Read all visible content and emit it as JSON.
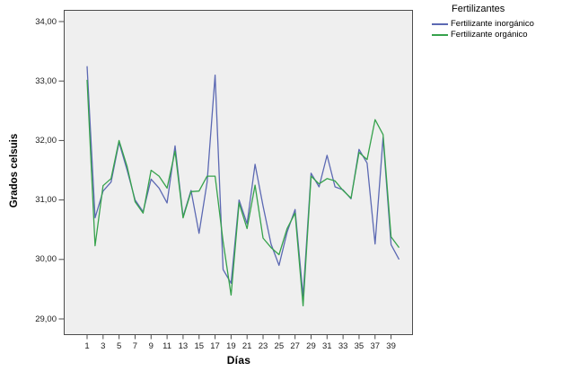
{
  "chart_data": {
    "type": "line",
    "title": "",
    "xlabel": "Días",
    "ylabel": "Grados celsuis",
    "legend_title": "Fertilizantes",
    "plot_bg": "#efefef",
    "frame_color": "#4c4c4c",
    "ylim": [
      29,
      34
    ],
    "yticks": [
      {
        "v": 34,
        "label": "34,00"
      },
      {
        "v": 33,
        "label": "33,00"
      },
      {
        "v": 32,
        "label": "32,00"
      },
      {
        "v": 31,
        "label": "31,00"
      },
      {
        "v": 30,
        "label": "30,00"
      },
      {
        "v": 29,
        "label": "29,00"
      }
    ],
    "xticks": [
      1,
      3,
      5,
      7,
      9,
      11,
      13,
      15,
      17,
      19,
      21,
      23,
      25,
      27,
      29,
      31,
      33,
      35,
      37,
      39
    ],
    "x": [
      1,
      2,
      3,
      4,
      5,
      6,
      7,
      8,
      9,
      10,
      11,
      12,
      13,
      14,
      15,
      16,
      17,
      18,
      19,
      20,
      21,
      22,
      23,
      24,
      25,
      26,
      27,
      28,
      29,
      30,
      31,
      32,
      33,
      34,
      35,
      36,
      37,
      38,
      39,
      40
    ],
    "series": [
      {
        "name": "Fertilizante inorgánico",
        "color": "#5c69b3",
        "values": [
          33.25,
          30.7,
          31.15,
          31.3,
          31.97,
          31.5,
          31.0,
          30.8,
          31.35,
          31.2,
          30.95,
          31.91,
          30.72,
          31.16,
          30.44,
          31.3,
          33.1,
          29.83,
          29.6,
          31.0,
          30.6,
          31.6,
          30.9,
          30.26,
          29.9,
          30.46,
          30.84,
          29.38,
          31.45,
          31.22,
          31.75,
          31.22,
          31.17,
          31.02,
          31.85,
          31.62,
          30.26,
          32.05,
          30.25,
          30.0
        ]
      },
      {
        "name": "Fertilizante orgánico",
        "color": "#36a24c",
        "values": [
          33.02,
          30.23,
          31.24,
          31.36,
          32.0,
          31.56,
          30.97,
          30.78,
          31.5,
          31.4,
          31.2,
          31.82,
          30.7,
          31.14,
          31.15,
          31.4,
          31.4,
          30.3,
          29.4,
          30.95,
          30.52,
          31.25,
          30.36,
          30.2,
          30.08,
          30.52,
          30.78,
          29.22,
          31.4,
          31.27,
          31.36,
          31.32,
          31.16,
          31.03,
          31.8,
          31.68,
          32.35,
          32.1,
          30.38,
          30.2
        ]
      }
    ]
  }
}
